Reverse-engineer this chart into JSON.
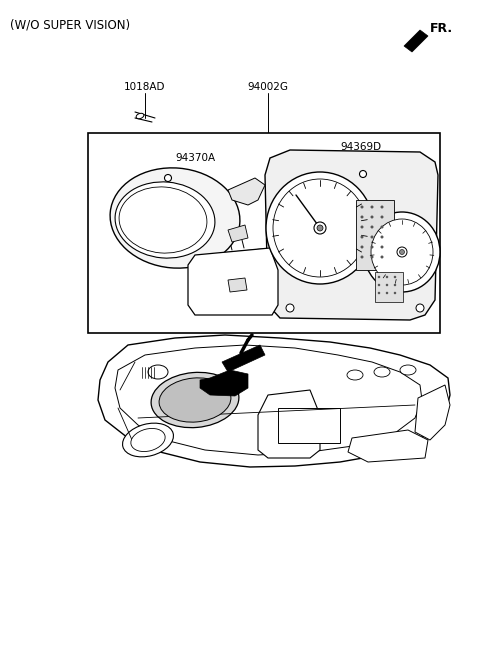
{
  "bg": "#ffffff",
  "lc": "#000000",
  "title": "(W/O SUPER VISION)",
  "fr_label": "FR.",
  "label_1018AD": "1018AD",
  "label_94002G": "94002G",
  "label_94370A": "94370A",
  "label_94369D": "94369D",
  "figsize": [
    4.8,
    6.55
  ],
  "dpi": 100
}
